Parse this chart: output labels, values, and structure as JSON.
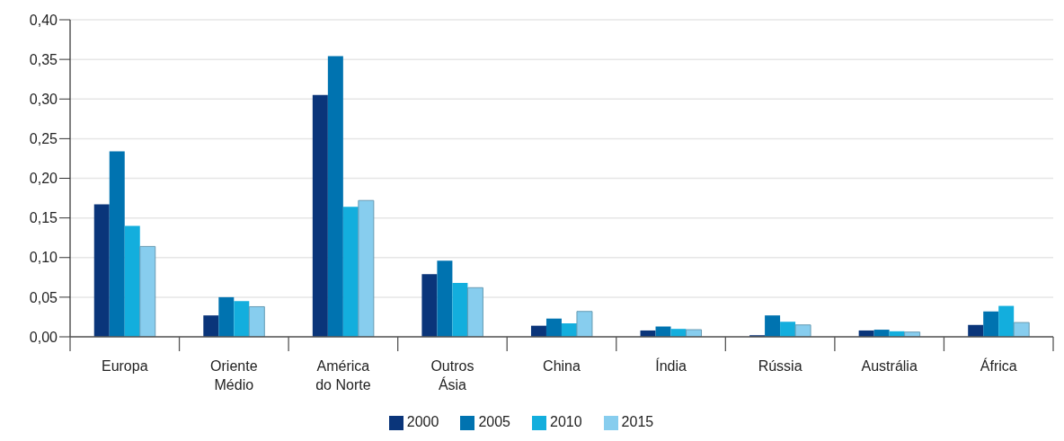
{
  "chart_data": {
    "type": "bar",
    "categories": [
      "Europa",
      "Oriente Médio",
      "América do Norte",
      "Outros Ásia",
      "China",
      "Índia",
      "Rússia",
      "Austrália",
      "África"
    ],
    "series": [
      {
        "name": "2000",
        "color": "#0a357a",
        "values": [
          0.167,
          0.027,
          0.305,
          0.079,
          0.014,
          0.008,
          0.002,
          0.008,
          0.015
        ]
      },
      {
        "name": "2005",
        "color": "#0073b0",
        "values": [
          0.234,
          0.05,
          0.354,
          0.096,
          0.023,
          0.013,
          0.027,
          0.009,
          0.032
        ]
      },
      {
        "name": "2010",
        "color": "#13aedd",
        "values": [
          0.14,
          0.045,
          0.164,
          0.068,
          0.017,
          0.01,
          0.019,
          0.007,
          0.039
        ]
      },
      {
        "name": "2015",
        "color": "#87cdee",
        "values": [
          0.114,
          0.038,
          0.172,
          0.062,
          0.032,
          0.009,
          0.015,
          0.006,
          0.018
        ]
      }
    ],
    "ylim": [
      0,
      0.4
    ],
    "yticks": [
      {
        "value": 0,
        "label": "0,00"
      },
      {
        "value": 0.05,
        "label": "0,05"
      },
      {
        "value": 0.1,
        "label": "0,10"
      },
      {
        "value": 0.15,
        "label": "0,15"
      },
      {
        "value": 0.2,
        "label": "0,20"
      },
      {
        "value": 0.25,
        "label": "0,25"
      },
      {
        "value": 0.3,
        "label": "0,30"
      },
      {
        "value": 0.35,
        "label": "0,35"
      },
      {
        "value": 0.4,
        "label": "0,40"
      }
    ],
    "grid": "y",
    "legend": "bottom"
  }
}
